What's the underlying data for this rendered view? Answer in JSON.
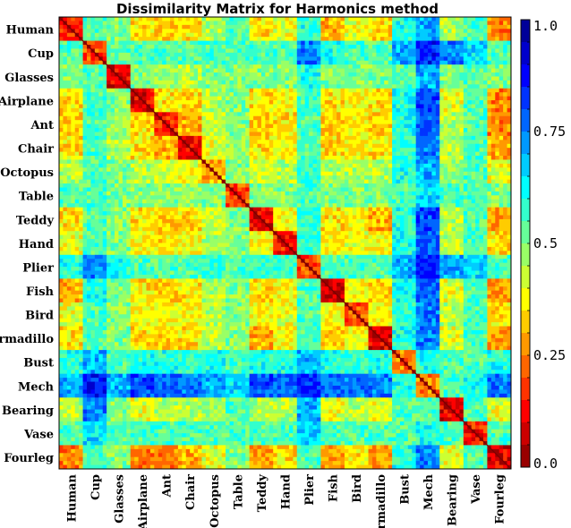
{
  "chart_data": {
    "type": "heatmap",
    "title": "Dissimilarity Matrix for Harmonics method",
    "categories": [
      "Human",
      "Cup",
      "Glasses",
      "Airplane",
      "Ant",
      "Chair",
      "Octopus",
      "Table",
      "Teddy",
      "Hand",
      "Plier",
      "Fish",
      "Bird",
      "Armadillo",
      "Bust",
      "Mech",
      "Bearing",
      "Vase",
      "Fourleg"
    ],
    "block_dissimilarity": [
      [
        0.15,
        0.55,
        0.5,
        0.35,
        0.33,
        0.35,
        0.45,
        0.55,
        0.35,
        0.4,
        0.6,
        0.3,
        0.4,
        0.35,
        0.6,
        0.7,
        0.45,
        0.55,
        0.25
      ],
      [
        0.55,
        0.2,
        0.55,
        0.55,
        0.55,
        0.55,
        0.55,
        0.55,
        0.55,
        0.55,
        0.75,
        0.6,
        0.55,
        0.55,
        0.7,
        0.85,
        0.75,
        0.65,
        0.55
      ],
      [
        0.5,
        0.55,
        0.1,
        0.5,
        0.48,
        0.45,
        0.5,
        0.5,
        0.5,
        0.5,
        0.6,
        0.5,
        0.5,
        0.5,
        0.55,
        0.7,
        0.5,
        0.55,
        0.5
      ],
      [
        0.35,
        0.55,
        0.5,
        0.1,
        0.35,
        0.35,
        0.45,
        0.5,
        0.35,
        0.38,
        0.55,
        0.35,
        0.38,
        0.35,
        0.6,
        0.8,
        0.4,
        0.55,
        0.25
      ],
      [
        0.33,
        0.55,
        0.48,
        0.35,
        0.15,
        0.3,
        0.42,
        0.5,
        0.33,
        0.35,
        0.55,
        0.33,
        0.38,
        0.33,
        0.6,
        0.78,
        0.45,
        0.55,
        0.25
      ],
      [
        0.35,
        0.55,
        0.45,
        0.35,
        0.3,
        0.1,
        0.4,
        0.48,
        0.35,
        0.38,
        0.55,
        0.35,
        0.38,
        0.35,
        0.58,
        0.75,
        0.45,
        0.55,
        0.3
      ],
      [
        0.45,
        0.55,
        0.5,
        0.45,
        0.42,
        0.4,
        0.3,
        0.5,
        0.42,
        0.45,
        0.58,
        0.45,
        0.45,
        0.45,
        0.6,
        0.7,
        0.48,
        0.55,
        0.4
      ],
      [
        0.55,
        0.55,
        0.5,
        0.5,
        0.5,
        0.48,
        0.5,
        0.2,
        0.5,
        0.5,
        0.55,
        0.5,
        0.5,
        0.5,
        0.55,
        0.65,
        0.55,
        0.55,
        0.5
      ],
      [
        0.35,
        0.55,
        0.5,
        0.35,
        0.33,
        0.35,
        0.42,
        0.5,
        0.1,
        0.38,
        0.58,
        0.35,
        0.38,
        0.3,
        0.6,
        0.8,
        0.45,
        0.55,
        0.28
      ],
      [
        0.4,
        0.55,
        0.5,
        0.38,
        0.35,
        0.38,
        0.45,
        0.5,
        0.38,
        0.15,
        0.58,
        0.38,
        0.4,
        0.38,
        0.6,
        0.78,
        0.45,
        0.55,
        0.35
      ],
      [
        0.6,
        0.75,
        0.6,
        0.55,
        0.55,
        0.55,
        0.58,
        0.55,
        0.58,
        0.58,
        0.2,
        0.55,
        0.55,
        0.55,
        0.7,
        0.85,
        0.7,
        0.65,
        0.55
      ],
      [
        0.3,
        0.6,
        0.5,
        0.35,
        0.33,
        0.35,
        0.45,
        0.5,
        0.35,
        0.38,
        0.55,
        0.08,
        0.38,
        0.33,
        0.6,
        0.78,
        0.4,
        0.55,
        0.28
      ],
      [
        0.4,
        0.55,
        0.5,
        0.38,
        0.38,
        0.38,
        0.45,
        0.5,
        0.38,
        0.4,
        0.55,
        0.38,
        0.2,
        0.38,
        0.58,
        0.75,
        0.45,
        0.55,
        0.35
      ],
      [
        0.35,
        0.55,
        0.5,
        0.35,
        0.33,
        0.35,
        0.45,
        0.5,
        0.3,
        0.38,
        0.55,
        0.33,
        0.38,
        0.1,
        0.6,
        0.75,
        0.4,
        0.55,
        0.28
      ],
      [
        0.6,
        0.7,
        0.55,
        0.6,
        0.6,
        0.58,
        0.6,
        0.55,
        0.6,
        0.6,
        0.7,
        0.6,
        0.58,
        0.6,
        0.25,
        0.6,
        0.55,
        0.55,
        0.6
      ],
      [
        0.7,
        0.85,
        0.7,
        0.8,
        0.78,
        0.75,
        0.7,
        0.65,
        0.8,
        0.78,
        0.85,
        0.78,
        0.75,
        0.75,
        0.6,
        0.25,
        0.55,
        0.6,
        0.75
      ],
      [
        0.45,
        0.75,
        0.5,
        0.4,
        0.45,
        0.45,
        0.48,
        0.55,
        0.45,
        0.45,
        0.7,
        0.4,
        0.45,
        0.4,
        0.55,
        0.55,
        0.1,
        0.55,
        0.4
      ],
      [
        0.55,
        0.65,
        0.55,
        0.55,
        0.55,
        0.55,
        0.55,
        0.55,
        0.55,
        0.55,
        0.65,
        0.55,
        0.55,
        0.55,
        0.55,
        0.6,
        0.55,
        0.15,
        0.55
      ],
      [
        0.25,
        0.55,
        0.5,
        0.25,
        0.25,
        0.3,
        0.4,
        0.5,
        0.28,
        0.35,
        0.55,
        0.28,
        0.35,
        0.28,
        0.6,
        0.75,
        0.4,
        0.55,
        0.1
      ]
    ],
    "colorbar": {
      "range": [
        0.0,
        1.0
      ],
      "ticks": [
        1.0,
        0.75,
        0.5,
        0.25,
        0.0
      ],
      "tick_labels": [
        "1.0",
        "0.75",
        "0.5",
        "0.25",
        "0.0"
      ],
      "levels": 20,
      "colormap": "jet"
    },
    "grid": false
  }
}
